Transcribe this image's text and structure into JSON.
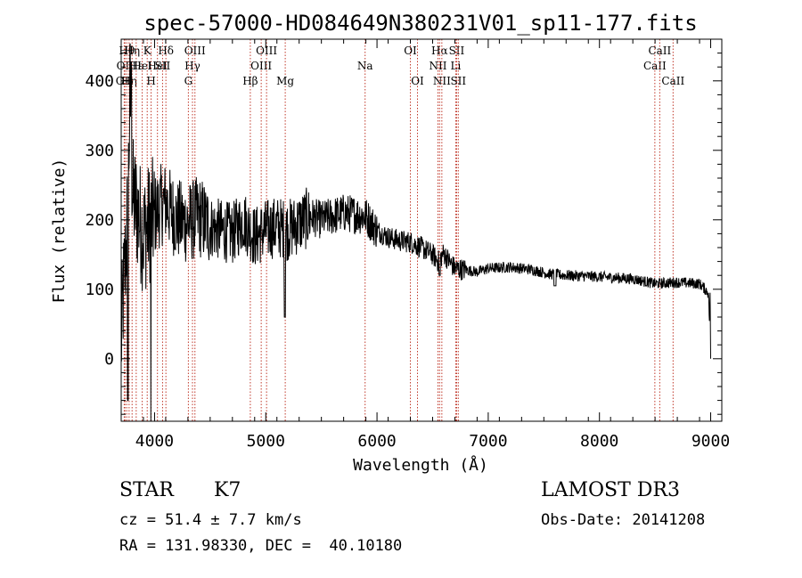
{
  "chart_data": {
    "type": "line",
    "title": "spec-57000-HD084649N380231V01_sp11-177.fits",
    "xlabel": "Wavelength (Å)",
    "ylabel": "Flux (relative)",
    "xlim": [
      3700,
      9100
    ],
    "ylim": [
      -90,
      460
    ],
    "x_ticks": [
      4000,
      5000,
      6000,
      7000,
      8000,
      9000
    ],
    "y_ticks": [
      0,
      100,
      200,
      300,
      400
    ],
    "grid": false,
    "line_color": "#000000",
    "marker_color": "#c0392b",
    "series": [
      {
        "name": "flux",
        "x": [
          3700,
          3720,
          3740,
          3760,
          3780,
          3800,
          3850,
          3900,
          3950,
          4000,
          4050,
          4100,
          4200,
          4300,
          4400,
          4500,
          4600,
          4700,
          4800,
          4900,
          5000,
          5100,
          5200,
          5300,
          5400,
          5500,
          5600,
          5700,
          5800,
          5900,
          6000,
          6100,
          6200,
          6300,
          6400,
          6500,
          6550,
          6600,
          6650,
          6700,
          6800,
          6900,
          7000,
          7200,
          7400,
          7550,
          7700,
          8000,
          8300,
          8500,
          8700,
          8900,
          8980,
          9000
        ],
        "y": [
          20,
          95,
          150,
          215,
          395,
          235,
          210,
          180,
          195,
          205,
          220,
          225,
          200,
          195,
          205,
          190,
          185,
          180,
          200,
          175,
          185,
          190,
          185,
          195,
          205,
          200,
          205,
          210,
          208,
          205,
          185,
          175,
          170,
          168,
          160,
          150,
          140,
          152,
          140,
          130,
          128,
          125,
          130,
          132,
          128,
          122,
          120,
          118,
          115,
          108,
          110,
          108,
          95,
          0
        ]
      }
    ],
    "line_markers": [
      {
        "wavelength": 3727,
        "labels": [
          "OII"
        ],
        "rows": [
          3
        ]
      },
      {
        "wavelength": 3734,
        "labels": [
          "OII"
        ],
        "rows": [
          2
        ]
      },
      {
        "wavelength": 3750,
        "labels": [
          "Hθ"
        ],
        "rows": [
          1
        ]
      },
      {
        "wavelength": 3771,
        "labels": [
          "Hη"
        ],
        "rows": [
          3
        ]
      },
      {
        "wavelength": 3798,
        "labels": [
          "Hη"
        ],
        "rows": [
          1
        ]
      },
      {
        "wavelength": 3835,
        "labels": [
          "Hε"
        ],
        "rows": [
          2
        ]
      },
      {
        "wavelength": 3889,
        "labels": [
          "HeI"
        ],
        "rows": [
          2
        ]
      },
      {
        "wavelength": 3934,
        "labels": [
          "K"
        ],
        "rows": [
          1
        ]
      },
      {
        "wavelength": 3969,
        "labels": [
          "H"
        ],
        "rows": [
          3
        ]
      },
      {
        "wavelength": 4026,
        "labels": [
          "HeI"
        ],
        "rows": [
          2
        ]
      },
      {
        "wavelength": 4072,
        "labels": [
          "SII"
        ],
        "rows": [
          2
        ]
      },
      {
        "wavelength": 4102,
        "labels": [
          "Hδ"
        ],
        "rows": [
          1
        ]
      },
      {
        "wavelength": 4304,
        "labels": [
          "G"
        ],
        "rows": [
          3
        ]
      },
      {
        "wavelength": 4341,
        "labels": [
          "Hγ"
        ],
        "rows": [
          2
        ]
      },
      {
        "wavelength": 4363,
        "labels": [
          "OIII"
        ],
        "rows": [
          1
        ]
      },
      {
        "wavelength": 4861,
        "labels": [
          "Hβ"
        ],
        "rows": [
          3
        ]
      },
      {
        "wavelength": 4959,
        "labels": [
          "OIII"
        ],
        "rows": [
          2
        ]
      },
      {
        "wavelength": 5007,
        "labels": [
          "OIII"
        ],
        "rows": [
          1
        ]
      },
      {
        "wavelength": 5175,
        "labels": [
          "Mg"
        ],
        "rows": [
          3
        ]
      },
      {
        "wavelength": 5893,
        "labels": [
          "Na"
        ],
        "rows": [
          2
        ]
      },
      {
        "wavelength": 6300,
        "labels": [
          "OI"
        ],
        "rows": [
          1
        ]
      },
      {
        "wavelength": 6364,
        "labels": [
          "OI"
        ],
        "rows": [
          3
        ]
      },
      {
        "wavelength": 6548,
        "labels": [
          "NII"
        ],
        "rows": [
          2
        ]
      },
      {
        "wavelength": 6563,
        "labels": [
          "Hα"
        ],
        "rows": [
          1
        ]
      },
      {
        "wavelength": 6583,
        "labels": [
          "NII"
        ],
        "rows": [
          3
        ]
      },
      {
        "wavelength": 6708,
        "labels": [
          "Li"
        ],
        "rows": [
          2
        ]
      },
      {
        "wavelength": 6716,
        "labels": [
          "SII"
        ],
        "rows": [
          1
        ]
      },
      {
        "wavelength": 6731,
        "labels": [
          "SII"
        ],
        "rows": [
          3
        ]
      },
      {
        "wavelength": 8498,
        "labels": [
          "CaII"
        ],
        "rows": [
          2
        ]
      },
      {
        "wavelength": 8542,
        "labels": [
          "CaII"
        ],
        "rows": [
          1
        ]
      },
      {
        "wavelength": 8662,
        "labels": [
          "CaII"
        ],
        "rows": [
          3
        ]
      }
    ]
  },
  "info": {
    "object_class": "STAR",
    "subclass": "K7",
    "survey": "LAMOST DR3",
    "redshift": "cz = 51.4 ± 7.7 km/s",
    "obs_date": "Obs-Date: 20141208",
    "coords": "RA = 131.98330, DEC =  40.10180"
  }
}
